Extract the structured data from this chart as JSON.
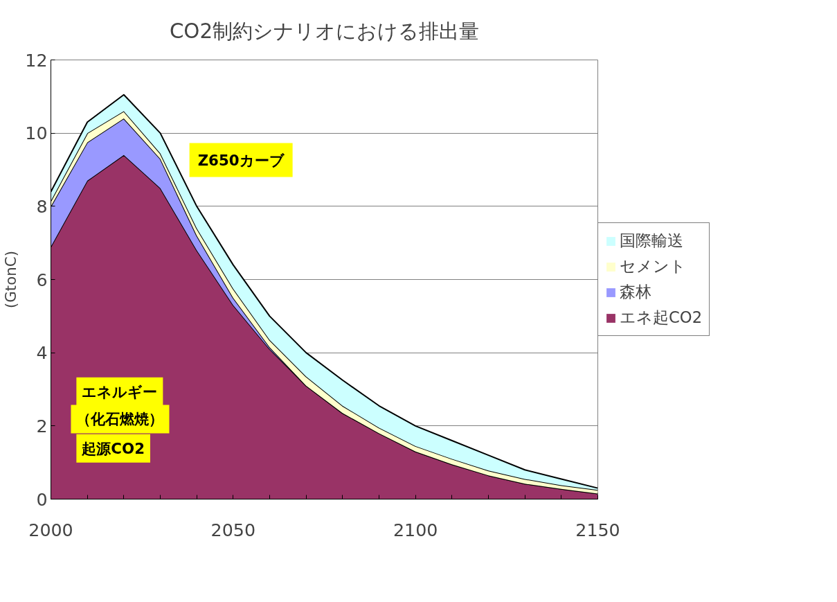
{
  "chart_data": {
    "type": "area",
    "stacked": true,
    "title": "CO2制約シナリオにおける排出量",
    "ylabel": "(GtonC)",
    "x": [
      2000,
      2010,
      2020,
      2030,
      2040,
      2050,
      2060,
      2070,
      2080,
      2090,
      2100,
      2110,
      2120,
      2130,
      2140,
      2150
    ],
    "series": [
      {
        "name": "エネ起CO2",
        "color": "#993366",
        "values": [
          6.9,
          8.7,
          9.4,
          8.5,
          6.8,
          5.3,
          4.1,
          3.1,
          2.35,
          1.8,
          1.3,
          0.95,
          0.65,
          0.42,
          0.28,
          0.15
        ]
      },
      {
        "name": "森林",
        "color": "#9999ff",
        "values": [
          1.1,
          1.05,
          1.0,
          0.8,
          0.4,
          0.2,
          0.05,
          0,
          0,
          0,
          0,
          0,
          0,
          0,
          0,
          0
        ]
      },
      {
        "name": "セメント",
        "color": "#ffffcc",
        "values": [
          0.15,
          0.25,
          0.2,
          0.15,
          0.2,
          0.25,
          0.2,
          0.25,
          0.2,
          0.15,
          0.15,
          0.15,
          0.13,
          0.13,
          0.1,
          0.1
        ]
      },
      {
        "name": "国際輸送",
        "color": "#ccffff",
        "values": [
          0.25,
          0.3,
          0.45,
          0.55,
          0.6,
          0.65,
          0.65,
          0.65,
          0.7,
          0.6,
          0.55,
          0.5,
          0.42,
          0.25,
          0.17,
          0.05
        ]
      }
    ],
    "xlim": [
      2000,
      2150
    ],
    "ylim": [
      0,
      12
    ],
    "xticks": [
      2000,
      {
        "value": 2010,
        "label": null
      },
      {
        "value": 2020,
        "label": null
      },
      {
        "value": 2030,
        "label": null
      },
      {
        "value": 2040,
        "label": null
      },
      2050,
      {
        "value": 2060,
        "label": null
      },
      {
        "value": 2070,
        "label": null
      },
      {
        "value": 2080,
        "label": null
      },
      {
        "value": 2090,
        "label": null
      },
      2100,
      {
        "value": 2110,
        "label": null
      },
      {
        "value": 2120,
        "label": null
      },
      {
        "value": 2130,
        "label": null
      },
      {
        "value": 2140,
        "label": null
      },
      2150
    ],
    "yticks": [
      0,
      2,
      4,
      6,
      8,
      10,
      12
    ],
    "grid": "y",
    "legend": "right",
    "annotations": [
      "Z650カーブ",
      "エネルギー",
      "（化石燃焼）",
      "起源CO2"
    ]
  }
}
